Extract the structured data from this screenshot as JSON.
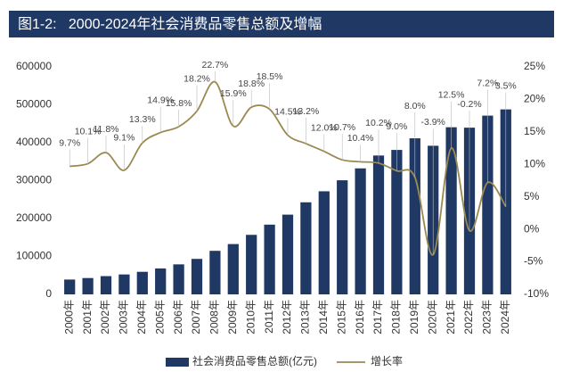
{
  "chart_data": {
    "type": "bar-line",
    "title": "图1-2:   2000-2024年社会消费品零售总额及增幅",
    "categories": [
      "2000年",
      "2001年",
      "2002年",
      "2003年",
      "2004年",
      "2005年",
      "2006年",
      "2007年",
      "2008年",
      "2009年",
      "2010年",
      "2011年",
      "2012年",
      "2013年",
      "2014年",
      "2015年",
      "2016年",
      "2017年",
      "2018年",
      "2019年",
      "2020年",
      "2021年",
      "2022年",
      "2023年",
      "2024年"
    ],
    "series": [
      {
        "name": "社会消费品零售总额(亿元)",
        "color": "#1f3864",
        "values": [
          39106,
          43055,
          48136,
          52516,
          59501,
          68353,
          79145,
          93572,
          114830,
          132678,
          156998,
          183919,
          210307,
          242843,
          271896,
          300931,
          332316,
          366262,
          380987,
          411649,
          391981,
          440823,
          439733,
          471495,
          487895
        ]
      },
      {
        "name": "增长率",
        "color": "#9a8a52",
        "axis": "y2",
        "values": [
          9.7,
          10.1,
          11.8,
          9.1,
          13.3,
          14.9,
          15.8,
          18.2,
          22.7,
          15.9,
          18.8,
          18.5,
          14.5,
          13.2,
          12.0,
          10.7,
          10.4,
          10.2,
          9.0,
          8.0,
          -3.9,
          12.5,
          -0.2,
          7.2,
          3.5
        ],
        "value_labels": [
          "9.7%",
          "10.1%",
          "11.8%",
          "9.1%",
          "13.3%",
          "14.9%",
          "15.8%",
          "18.2%",
          "22.7%",
          "15.9%",
          "18.8%",
          "18.5%",
          "14.5%",
          "13.2%",
          "12.0%",
          "10.7%",
          "10.4%",
          "10.2%",
          "9.0%",
          "8.0%",
          "-3.9%",
          "12.5%",
          "-0.2%",
          "7.2%",
          "3.5%"
        ]
      }
    ],
    "ylim": [
      0,
      600000
    ],
    "yticks": [
      0,
      100000,
      200000,
      300000,
      400000,
      500000,
      600000
    ],
    "y2lim": [
      -10,
      25
    ],
    "y2ticks": [
      {
        "value": -10,
        "label": "-10%"
      },
      {
        "value": -5,
        "label": "-5%"
      },
      {
        "value": 0,
        "label": "0%"
      },
      {
        "value": 5,
        "label": "5%"
      },
      {
        "value": 10,
        "label": "10%"
      },
      {
        "value": 15,
        "label": "15%"
      },
      {
        "value": 20,
        "label": "20%"
      },
      {
        "value": 25,
        "label": "25%"
      }
    ],
    "grid": false,
    "legend": "bottom"
  }
}
